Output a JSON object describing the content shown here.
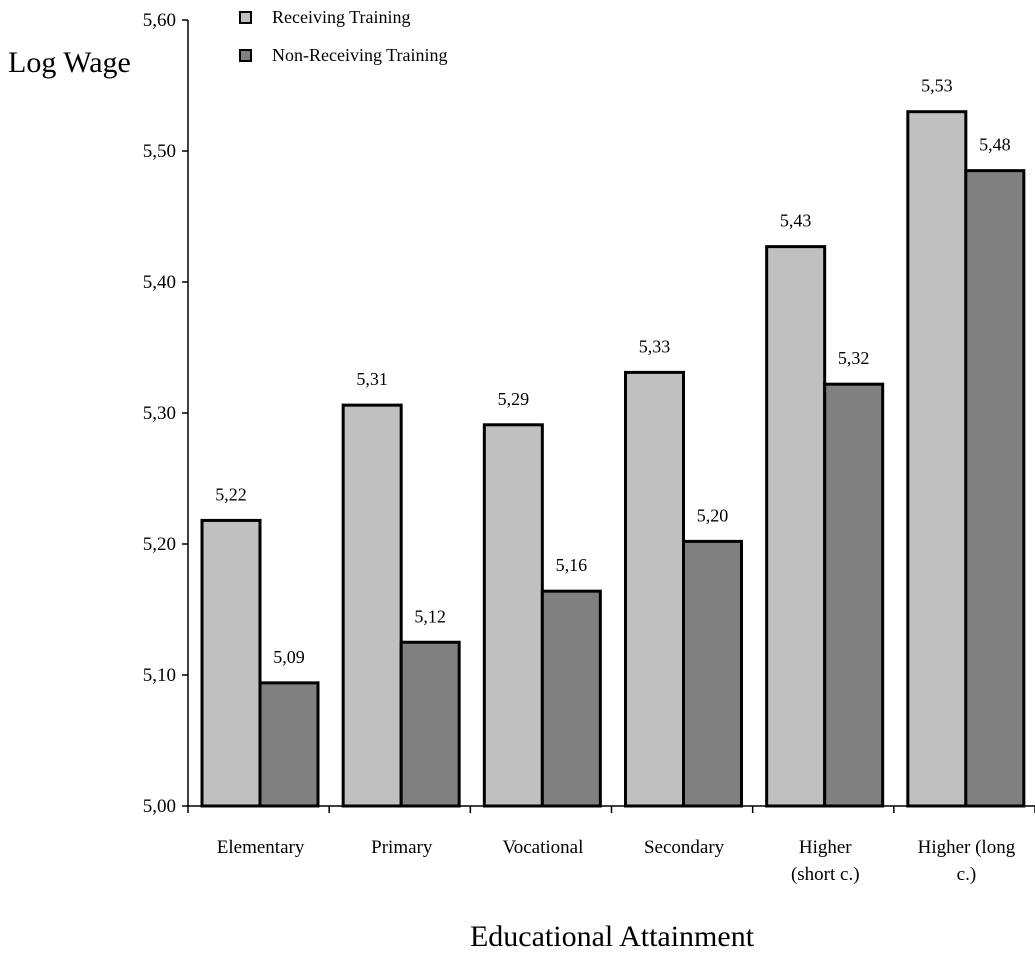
{
  "chart_data": {
    "type": "bar",
    "title": "",
    "xlabel": "Educational Attainment",
    "ylabel": "Log Wage",
    "ylim": [
      5.0,
      5.6
    ],
    "yticks": [
      5.0,
      5.1,
      5.2,
      5.3,
      5.4,
      5.5,
      5.6
    ],
    "ytick_labels": [
      "5,00",
      "5,10",
      "5,20",
      "5,30",
      "5,40",
      "5,50",
      "5,60"
    ],
    "categories": [
      [
        "Elementary"
      ],
      [
        "Primary"
      ],
      [
        "Vocational"
      ],
      [
        "Secondary"
      ],
      [
        "Higher",
        "(short c.)"
      ],
      [
        "Higher (long",
        "c.)"
      ]
    ],
    "series": [
      {
        "name": "Receiving Training",
        "color": "#c0c0c0",
        "values": [
          5.218,
          5.306,
          5.291,
          5.331,
          5.427,
          5.53
        ],
        "labels": [
          "5,22",
          "5,31",
          "5,29",
          "5,33",
          "5,43",
          "5,53"
        ]
      },
      {
        "name": "Non-Receiving Training",
        "color": "#808080",
        "values": [
          5.094,
          5.125,
          5.164,
          5.202,
          5.322,
          5.485
        ],
        "labels": [
          "5,09",
          "5,12",
          "5,16",
          "5,20",
          "5,32",
          "5,48"
        ]
      }
    ],
    "grid": false,
    "legend_position": "top-left"
  }
}
